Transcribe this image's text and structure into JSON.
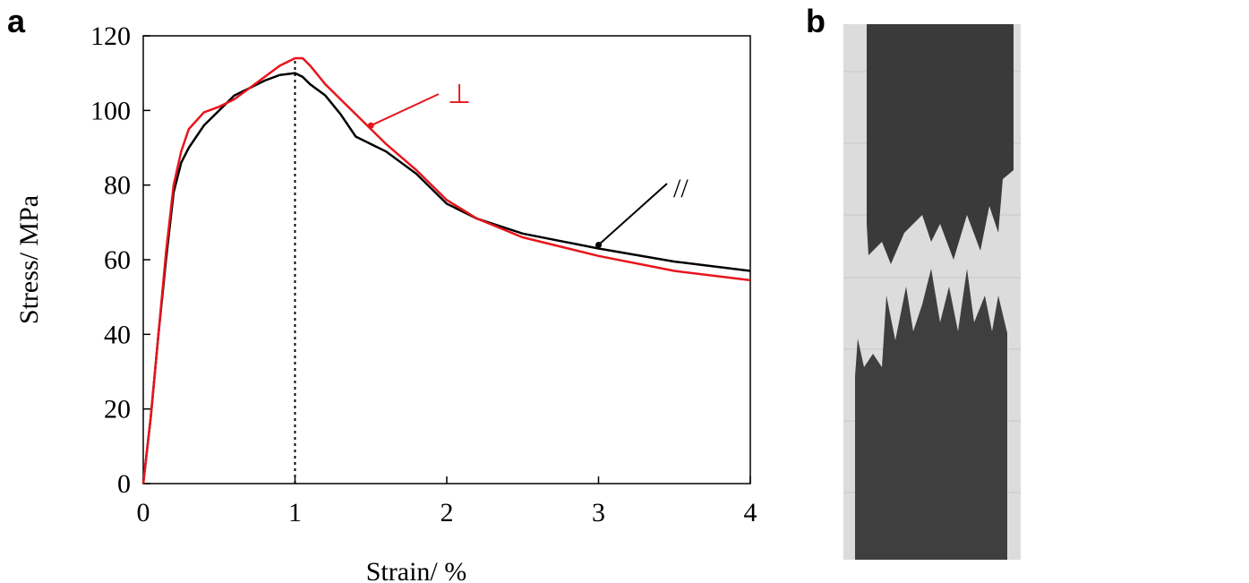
{
  "panels": {
    "a": "a",
    "b": "b"
  },
  "chart_data": {
    "type": "line",
    "xlabel": "Strain/ %",
    "ylabel": "Stress/ MPa",
    "x": [
      0,
      0.05,
      0.1,
      0.15,
      0.2,
      0.25,
      0.3,
      0.4,
      0.5,
      0.6,
      0.7,
      0.8,
      0.9,
      1.0,
      1.05,
      1.1,
      1.2,
      1.3,
      1.4,
      1.5,
      1.6,
      1.8,
      2.0,
      2.2,
      2.5,
      3.0,
      3.5,
      4.0
    ],
    "series": [
      {
        "name": "//",
        "color": "#000000",
        "values": [
          0,
          18,
          40,
          60,
          78,
          86,
          90,
          96,
          100,
          104,
          106,
          108,
          109.5,
          110,
          109,
          107,
          104,
          99,
          93,
          91,
          89,
          83,
          75,
          71,
          67,
          63,
          59.5,
          57
        ]
      },
      {
        "name": "⊥",
        "color": "#e8141c",
        "values": [
          0,
          18,
          40,
          62,
          80,
          89,
          95,
          99.5,
          101,
          103,
          106,
          109,
          112,
          114,
          114,
          112,
          107,
          103,
          99,
          95,
          91,
          84,
          76,
          71,
          66,
          61,
          57,
          54.5
        ]
      }
    ],
    "vline_x": 1,
    "xlim": [
      0,
      4
    ],
    "xticks": [
      0,
      1,
      2,
      3,
      4
    ],
    "ylim": [
      0,
      120
    ],
    "yticks": [
      0,
      20,
      40,
      60,
      80,
      100,
      120
    ]
  }
}
